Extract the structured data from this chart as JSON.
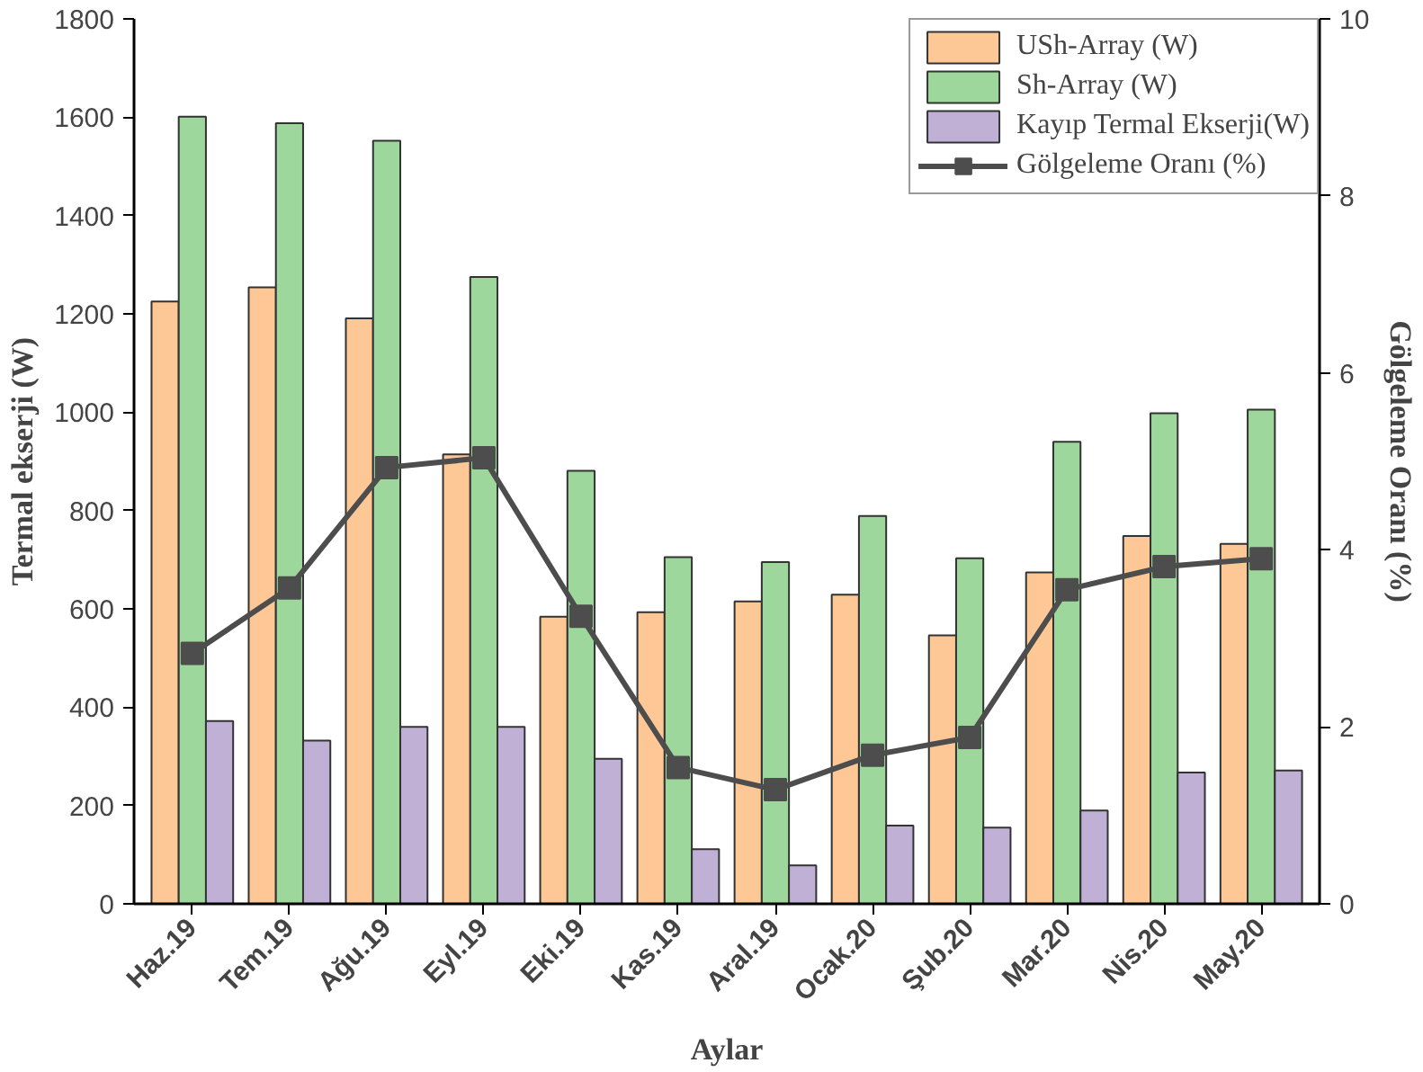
{
  "chart_data": {
    "type": "bar",
    "xlabel": "Aylar",
    "ylabel": "Termal ekserji (W)",
    "y2label": "Gölgeleme Oranı (%)",
    "categories": [
      "Haz.19",
      "Tem.19",
      "Ağu.19",
      "Eyl.19",
      "Eki.19",
      "Kas.19",
      "Aral.19",
      "Ocak.20",
      "Şub.20",
      "Mar.20",
      "Nis.20",
      "May.20"
    ],
    "series": [
      {
        "name": "USh-Array (W)",
        "color": "#fdc896",
        "values": [
          1225,
          1254,
          1191,
          914,
          584,
          593,
          615,
          629,
          546,
          674,
          748,
          732
        ]
      },
      {
        "name": "Sh-Array (W)",
        "color": "#9dd79b",
        "values": [
          1601,
          1588,
          1552,
          1275,
          881,
          705,
          695,
          789,
          703,
          940,
          998,
          1005
        ]
      },
      {
        "name": "Kayıp Termal Ekserji(W)",
        "color": "#c0b0d6",
        "values": [
          372,
          332,
          360,
          360,
          295,
          111,
          78,
          159,
          155,
          190,
          267,
          271
        ]
      },
      {
        "name": "Gölgeleme Oranı (%)",
        "color": "#4d4d4d",
        "type": "line",
        "axis": "y2",
        "marker": "square",
        "line_style": "solid",
        "values": [
          2.83,
          3.57,
          4.93,
          5.04,
          3.25,
          1.54,
          1.29,
          1.68,
          1.88,
          3.55,
          3.81,
          3.9
        ]
      }
    ],
    "ylim": [
      0,
      1800
    ],
    "yticks": [
      0,
      200,
      400,
      600,
      800,
      1000,
      1200,
      1400,
      1600,
      1800
    ],
    "y2lim": [
      0,
      10
    ],
    "y2ticks": [
      0,
      2,
      4,
      6,
      8,
      10
    ],
    "grid": false,
    "legend": "top right"
  }
}
